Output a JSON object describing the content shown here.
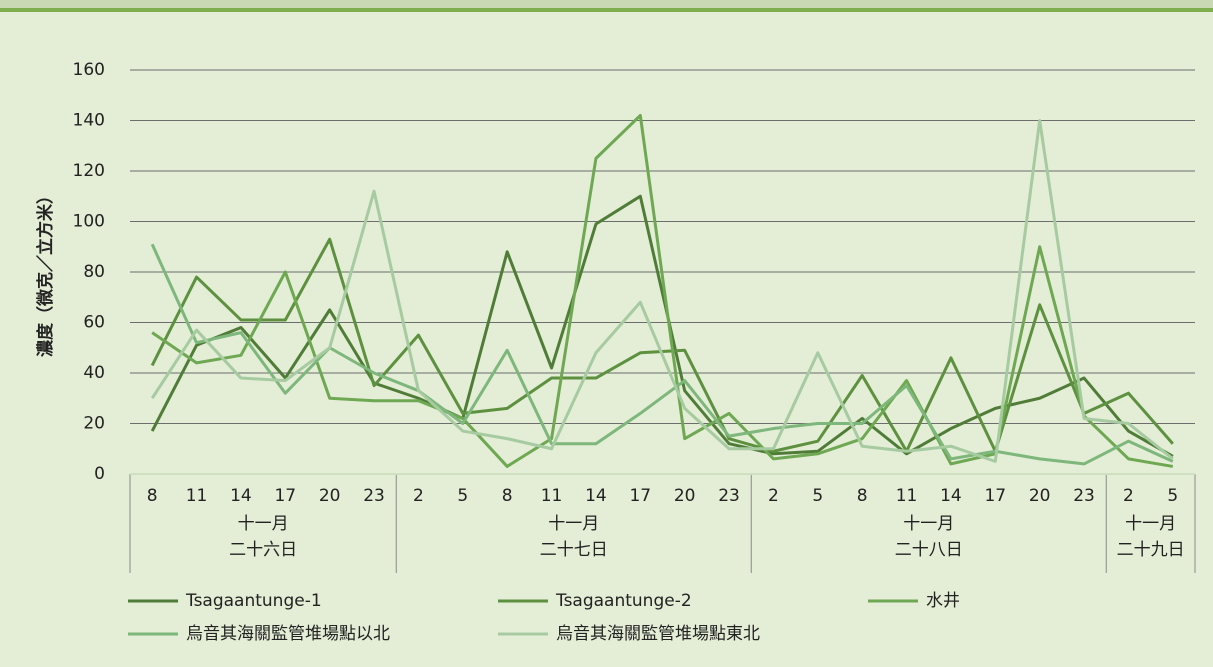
{
  "chart_data": {
    "type": "line",
    "ylabel": "濃度（微克／立方米）",
    "groups": [
      {
        "label": [
          "十一月",
          "二十六日"
        ],
        "categories": [
          8,
          11,
          14,
          17,
          20,
          23
        ]
      },
      {
        "label": [
          "十一月",
          "二十七日"
        ],
        "categories": [
          2,
          5,
          8,
          11,
          14,
          17,
          20,
          23
        ]
      },
      {
        "label": [
          "十一月",
          "二十八日"
        ],
        "categories": [
          2,
          5,
          8,
          11,
          14,
          17,
          20,
          23
        ]
      },
      {
        "label": [
          "十一月",
          "二十九日"
        ],
        "categories": [
          2,
          5
        ]
      }
    ],
    "ylim": [
      0,
      160
    ],
    "yticks": [
      0,
      20,
      40,
      60,
      80,
      100,
      120,
      140,
      160
    ],
    "grid": true,
    "series": [
      {
        "name": "Tsagaantunge-1",
        "color": "#4f7d38",
        "values": [
          17,
          51,
          58,
          38,
          65,
          36,
          30,
          22,
          88,
          42,
          99,
          110,
          33,
          12,
          8,
          9,
          22,
          8,
          18,
          26,
          30,
          38,
          17,
          7
        ]
      },
      {
        "name": "Tsagaantunge-2",
        "color": "#5d9140",
        "values": [
          43,
          78,
          61,
          61,
          93,
          35,
          55,
          24,
          26,
          38,
          38,
          48,
          49,
          14,
          9,
          13,
          39,
          9,
          46,
          9,
          67,
          24,
          32,
          12
        ]
      },
      {
        "name": "水井",
        "color": "#6ea852",
        "values": [
          56,
          44,
          47,
          80,
          30,
          29,
          29,
          22,
          3,
          14,
          125,
          142,
          14,
          24,
          6,
          8,
          14,
          37,
          4,
          8,
          90,
          23,
          6,
          3
        ]
      },
      {
        "name": "烏音其海關監管堆場點以北",
        "color": "#7db77b",
        "values": [
          91,
          52,
          56,
          32,
          50,
          40,
          33,
          20,
          49,
          12,
          12,
          24,
          37,
          15,
          18,
          20,
          20,
          35,
          6,
          9,
          6,
          4,
          13,
          5
        ]
      },
      {
        "name": "烏音其海關監管堆場點東北",
        "color": "#a7cba1",
        "values": [
          30,
          57,
          38,
          37,
          50,
          112,
          33,
          17,
          14,
          10,
          48,
          68,
          26,
          10,
          10,
          48,
          11,
          9,
          11,
          5,
          140,
          22,
          20,
          6
        ]
      }
    ]
  }
}
